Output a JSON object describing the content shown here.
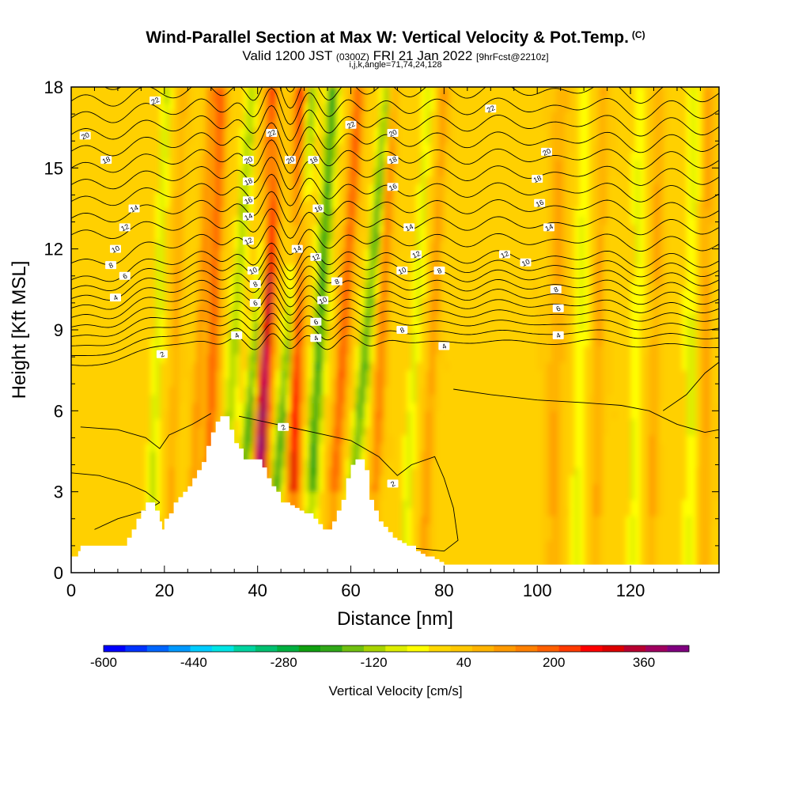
{
  "header": {
    "title": "Wind-Parallel Section at Max W: Vertical Velocity & Pot.Temp.",
    "title_mark": "(C)",
    "subtitle_main": "Valid 1200 JST",
    "subtitle_utc": "(0300Z)",
    "subtitle_date": "FRI 21 Jan 2022",
    "subtitle_fcst": "[9hrFcst@2210z]",
    "params": "i,j,k,angle=71,74,24,128"
  },
  "chart_data": {
    "type": "heatmap",
    "xlabel": "Distance [nm]",
    "ylabel": "Height [Kft MSL]",
    "xlim": [
      0,
      139
    ],
    "ylim": [
      0,
      18
    ],
    "x_ticks": [
      0,
      20,
      40,
      60,
      80,
      100,
      120
    ],
    "y_ticks": [
      0,
      3,
      6,
      9,
      12,
      15,
      18
    ],
    "grid": false,
    "colorbar": {
      "label": "Vertical Velocity [cm/s]",
      "min": -600,
      "max": 440,
      "step": 40,
      "tick_values": [
        -600,
        -440,
        -280,
        -120,
        40,
        200,
        360
      ],
      "colors": [
        "#0000ff",
        "#0033ff",
        "#0066ff",
        "#0099ff",
        "#00ccff",
        "#00e5e5",
        "#00d4a0",
        "#00c070",
        "#00b040",
        "#10a010",
        "#30a818",
        "#70c010",
        "#a8d400",
        "#ddee00",
        "#ffff00",
        "#ffd800",
        "#ffc800",
        "#ffb400",
        "#ff9a00",
        "#ff8000",
        "#ff6000",
        "#ff3a00",
        "#ff0000",
        "#dd0000",
        "#b80030",
        "#a00060",
        "#800080"
      ]
    },
    "terrain_profile": {
      "x": [
        0,
        1.5,
        2,
        11,
        12,
        13,
        14,
        15,
        16,
        17,
        18,
        19,
        19.5,
        20,
        21,
        22,
        23,
        24,
        25,
        26,
        27,
        28,
        29,
        30,
        31,
        32,
        33,
        34,
        35,
        36,
        37,
        38,
        39,
        40,
        41,
        42,
        43,
        44,
        45,
        46,
        47,
        48,
        49,
        50,
        51,
        52,
        53,
        54,
        55,
        56,
        57,
        58,
        59,
        60,
        61,
        62,
        63,
        64,
        65,
        66,
        67,
        68,
        69,
        70,
        71,
        72,
        73,
        74,
        75,
        76,
        77,
        78,
        79,
        80,
        82,
        139
      ],
      "height": [
        0.6,
        0.8,
        1.0,
        1.0,
        1.3,
        1.6,
        2.0,
        2.3,
        2.6,
        2.6,
        2.3,
        1.9,
        1.6,
        2.0,
        2.2,
        2.6,
        2.8,
        3.0,
        3.2,
        3.5,
        3.8,
        4.1,
        4.7,
        5.2,
        5.6,
        5.8,
        5.8,
        5.3,
        4.8,
        4.6,
        4.2,
        4.2,
        4.2,
        4.2,
        3.9,
        3.5,
        3.2,
        3.0,
        2.6,
        2.6,
        2.5,
        2.4,
        2.3,
        2.2,
        2.2,
        2.0,
        1.8,
        1.6,
        1.6,
        1.9,
        2.3,
        2.7,
        3.5,
        4.0,
        4.2,
        4.2,
        3.8,
        2.7,
        2.3,
        1.9,
        1.7,
        1.5,
        1.3,
        1.2,
        1.1,
        1.0,
        1.0,
        0.8,
        0.7,
        0.6,
        0.6,
        0.5,
        0.4,
        0.3,
        0.3,
        0.3
      ]
    },
    "isentrope_labels": [
      {
        "text": "22",
        "x": 18,
        "y": 17.5
      },
      {
        "text": "20",
        "x": 3,
        "y": 16.2
      },
      {
        "text": "18",
        "x": 7.5,
        "y": 15.3
      },
      {
        "text": "14",
        "x": 13.5,
        "y": 13.5
      },
      {
        "text": "12",
        "x": 11.5,
        "y": 12.8
      },
      {
        "text": "10",
        "x": 9.5,
        "y": 12.0
      },
      {
        "text": "8",
        "x": 8.5,
        "y": 11.4
      },
      {
        "text": "6",
        "x": 11.5,
        "y": 11.0
      },
      {
        "text": "4",
        "x": 9.5,
        "y": 10.2
      },
      {
        "text": "2",
        "x": 19.5,
        "y": 8.1
      },
      {
        "text": "20",
        "x": 38,
        "y": 15.3
      },
      {
        "text": "18",
        "x": 38,
        "y": 14.5
      },
      {
        "text": "16",
        "x": 38,
        "y": 13.8
      },
      {
        "text": "14",
        "x": 38,
        "y": 13.2
      },
      {
        "text": "12",
        "x": 38,
        "y": 12.3
      },
      {
        "text": "10",
        "x": 39,
        "y": 11.2
      },
      {
        "text": "8",
        "x": 39.5,
        "y": 10.7
      },
      {
        "text": "6",
        "x": 39.5,
        "y": 10.0
      },
      {
        "text": "4",
        "x": 35.5,
        "y": 8.8
      },
      {
        "text": "22",
        "x": 43,
        "y": 16.3
      },
      {
        "text": "20",
        "x": 47,
        "y": 15.3
      },
      {
        "text": "18",
        "x": 52,
        "y": 15.3
      },
      {
        "text": "14",
        "x": 48.5,
        "y": 12.0
      },
      {
        "text": "16",
        "x": 53,
        "y": 13.5
      },
      {
        "text": "12",
        "x": 52.5,
        "y": 11.7
      },
      {
        "text": "8",
        "x": 57,
        "y": 10.8
      },
      {
        "text": "10",
        "x": 54,
        "y": 10.1
      },
      {
        "text": "6",
        "x": 52.5,
        "y": 9.3
      },
      {
        "text": "4",
        "x": 52.5,
        "y": 8.7
      },
      {
        "text": "22",
        "x": 60,
        "y": 16.6
      },
      {
        "text": "20",
        "x": 69,
        "y": 16.3
      },
      {
        "text": "18",
        "x": 69,
        "y": 15.3
      },
      {
        "text": "16",
        "x": 69,
        "y": 14.3
      },
      {
        "text": "14",
        "x": 72.5,
        "y": 12.8
      },
      {
        "text": "12",
        "x": 74,
        "y": 11.8
      },
      {
        "text": "10",
        "x": 71,
        "y": 11.2
      },
      {
        "text": "8",
        "x": 79,
        "y": 11.2
      },
      {
        "text": "8",
        "x": 71,
        "y": 9.0
      },
      {
        "text": "4",
        "x": 80,
        "y": 8.4
      },
      {
        "text": "22",
        "x": 90,
        "y": 17.2
      },
      {
        "text": "20",
        "x": 102,
        "y": 15.6
      },
      {
        "text": "18",
        "x": 100,
        "y": 14.6
      },
      {
        "text": "16",
        "x": 100.5,
        "y": 13.7
      },
      {
        "text": "14",
        "x": 102.5,
        "y": 12.8
      },
      {
        "text": "12",
        "x": 93,
        "y": 11.8
      },
      {
        "text": "10",
        "x": 97.5,
        "y": 11.5
      },
      {
        "text": "8",
        "x": 104,
        "y": 10.5
      },
      {
        "text": "6",
        "x": 104.5,
        "y": 9.8
      },
      {
        "text": "4",
        "x": 104.5,
        "y": 8.8
      },
      {
        "text": "2",
        "x": 45.5,
        "y": 5.4
      },
      {
        "text": "2",
        "x": 69,
        "y": 3.3
      }
    ]
  }
}
